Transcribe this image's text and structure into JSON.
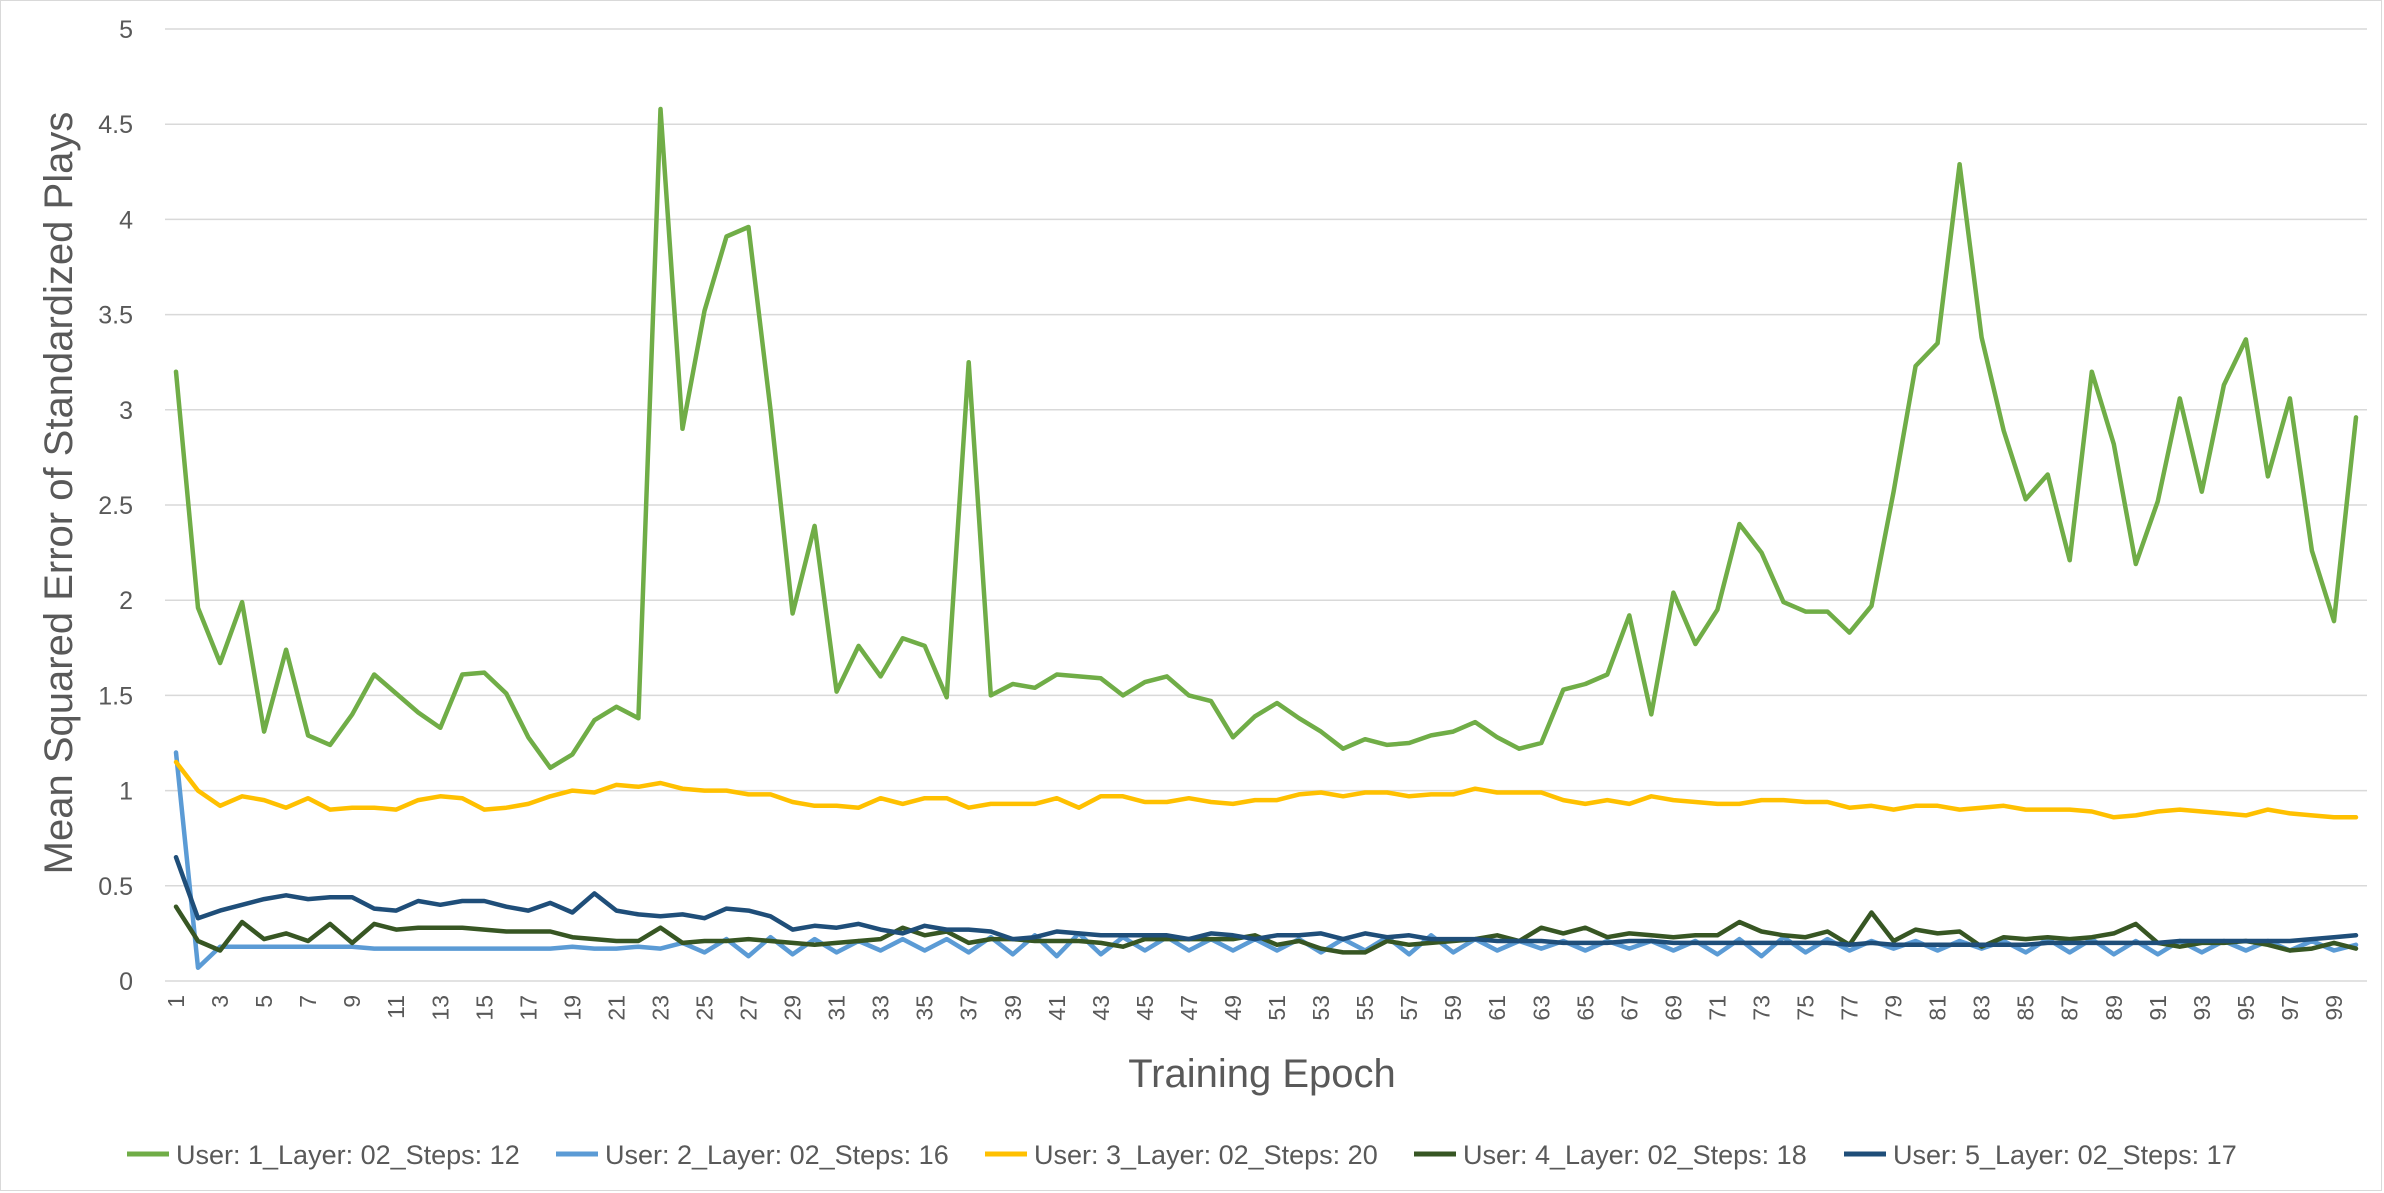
{
  "chart_data": {
    "type": "line",
    "title": "",
    "xlabel": "Training Epoch",
    "ylabel": "Mean Squared Error of Standardized Plays",
    "ylim": [
      0,
      5
    ],
    "yticks": [
      "0",
      "0.5",
      "1",
      "1.5",
      "2",
      "2.5",
      "3",
      "3.5",
      "4",
      "4.5",
      "5"
    ],
    "x": [
      1,
      2,
      3,
      4,
      5,
      6,
      7,
      8,
      9,
      10,
      11,
      12,
      13,
      14,
      15,
      16,
      17,
      18,
      19,
      20,
      21,
      22,
      23,
      24,
      25,
      26,
      27,
      28,
      29,
      30,
      31,
      32,
      33,
      34,
      35,
      36,
      37,
      38,
      39,
      40,
      41,
      42,
      43,
      44,
      45,
      46,
      47,
      48,
      49,
      50,
      51,
      52,
      53,
      54,
      55,
      56,
      57,
      58,
      59,
      60,
      61,
      62,
      63,
      64,
      65,
      66,
      67,
      68,
      69,
      70,
      71,
      72,
      73,
      74,
      75,
      76,
      77,
      78,
      79,
      80,
      81,
      82,
      83,
      84,
      85,
      86,
      87,
      88,
      89,
      90,
      91,
      92,
      93,
      94,
      95,
      96,
      97,
      98,
      99,
      100
    ],
    "xtick_labels": [
      "1",
      "3",
      "5",
      "7",
      "9",
      "11",
      "13",
      "15",
      "17",
      "19",
      "21",
      "23",
      "25",
      "27",
      "29",
      "31",
      "33",
      "35",
      "37",
      "39",
      "41",
      "43",
      "45",
      "47",
      "49",
      "51",
      "53",
      "55",
      "57",
      "59",
      "61",
      "63",
      "65",
      "67",
      "69",
      "71",
      "73",
      "75",
      "77",
      "79",
      "81",
      "83",
      "85",
      "87",
      "89",
      "91",
      "93",
      "95",
      "97",
      "99"
    ],
    "grid": true,
    "legend_position": "bottom",
    "series": [
      {
        "name": "User: 1_Layer: 02_Steps: 12",
        "color": "#70ad47",
        "values": [
          3.2,
          1.96,
          1.67,
          1.99,
          1.31,
          1.74,
          1.29,
          1.24,
          1.4,
          1.61,
          1.51,
          1.41,
          1.33,
          1.61,
          1.62,
          1.51,
          1.28,
          1.12,
          1.19,
          1.37,
          1.44,
          1.38,
          4.58,
          2.9,
          3.52,
          3.91,
          3.96,
          3.0,
          1.93,
          2.39,
          1.52,
          1.76,
          1.6,
          1.8,
          1.76,
          1.49,
          3.25,
          1.5,
          1.56,
          1.54,
          1.61,
          1.6,
          1.59,
          1.5,
          1.57,
          1.6,
          1.5,
          1.47,
          1.28,
          1.39,
          1.46,
          1.38,
          1.31,
          1.22,
          1.27,
          1.24,
          1.25,
          1.29,
          1.31,
          1.36,
          1.28,
          1.22,
          1.25,
          1.53,
          1.56,
          1.61,
          1.92,
          1.4,
          2.04,
          1.77,
          1.95,
          2.4,
          2.25,
          1.99,
          1.94,
          1.94,
          1.83,
          1.97,
          2.57,
          3.23,
          3.35,
          4.29,
          3.38,
          2.89,
          2.53,
          2.66,
          2.21,
          3.2,
          2.82,
          2.19,
          2.52,
          3.06,
          2.57,
          3.13,
          3.37,
          2.65,
          3.06,
          2.26,
          1.89,
          2.96
        ]
      },
      {
        "name": "User: 2_Layer: 02_Steps: 16",
        "color": "#5b9bd5",
        "values": [
          1.2,
          0.07,
          0.18,
          0.18,
          0.18,
          0.18,
          0.18,
          0.18,
          0.18,
          0.17,
          0.17,
          0.17,
          0.17,
          0.17,
          0.17,
          0.17,
          0.17,
          0.17,
          0.18,
          0.17,
          0.17,
          0.18,
          0.17,
          0.2,
          0.15,
          0.22,
          0.13,
          0.23,
          0.14,
          0.22,
          0.15,
          0.21,
          0.16,
          0.22,
          0.16,
          0.22,
          0.15,
          0.23,
          0.14,
          0.24,
          0.13,
          0.25,
          0.14,
          0.23,
          0.16,
          0.23,
          0.16,
          0.22,
          0.16,
          0.22,
          0.16,
          0.22,
          0.15,
          0.22,
          0.16,
          0.23,
          0.14,
          0.24,
          0.15,
          0.22,
          0.16,
          0.21,
          0.17,
          0.21,
          0.16,
          0.21,
          0.17,
          0.21,
          0.16,
          0.21,
          0.14,
          0.22,
          0.13,
          0.23,
          0.15,
          0.22,
          0.16,
          0.21,
          0.17,
          0.21,
          0.16,
          0.21,
          0.17,
          0.21,
          0.15,
          0.22,
          0.15,
          0.22,
          0.14,
          0.21,
          0.14,
          0.21,
          0.15,
          0.21,
          0.16,
          0.21,
          0.16,
          0.21,
          0.16,
          0.19
        ]
      },
      {
        "name": "User: 3_Layer: 02_Steps: 20",
        "color": "#ffc000",
        "values": [
          1.15,
          1.0,
          0.92,
          0.97,
          0.95,
          0.91,
          0.96,
          0.9,
          0.91,
          0.91,
          0.9,
          0.95,
          0.97,
          0.96,
          0.9,
          0.91,
          0.93,
          0.97,
          1.0,
          0.99,
          1.03,
          1.02,
          1.04,
          1.01,
          1.0,
          1.0,
          0.98,
          0.98,
          0.94,
          0.92,
          0.92,
          0.91,
          0.96,
          0.93,
          0.96,
          0.96,
          0.91,
          0.93,
          0.93,
          0.93,
          0.96,
          0.91,
          0.97,
          0.97,
          0.94,
          0.94,
          0.96,
          0.94,
          0.93,
          0.95,
          0.95,
          0.98,
          0.99,
          0.97,
          0.99,
          0.99,
          0.97,
          0.98,
          0.98,
          1.01,
          0.99,
          0.99,
          0.99,
          0.95,
          0.93,
          0.95,
          0.93,
          0.97,
          0.95,
          0.94,
          0.93,
          0.93,
          0.95,
          0.95,
          0.94,
          0.94,
          0.91,
          0.92,
          0.9,
          0.92,
          0.92,
          0.9,
          0.91,
          0.92,
          0.9,
          0.9,
          0.9,
          0.89,
          0.86,
          0.87,
          0.89,
          0.9,
          0.89,
          0.88,
          0.87,
          0.9,
          0.88,
          0.87,
          0.86,
          0.86
        ]
      },
      {
        "name": "User: 4_Layer: 02_Steps: 18",
        "color": "#375623",
        "values": [
          0.39,
          0.21,
          0.16,
          0.31,
          0.22,
          0.25,
          0.21,
          0.3,
          0.2,
          0.3,
          0.27,
          0.28,
          0.28,
          0.28,
          0.27,
          0.26,
          0.26,
          0.26,
          0.23,
          0.22,
          0.21,
          0.21,
          0.28,
          0.2,
          0.21,
          0.21,
          0.22,
          0.21,
          0.2,
          0.19,
          0.2,
          0.21,
          0.22,
          0.28,
          0.24,
          0.26,
          0.2,
          0.22,
          0.22,
          0.21,
          0.21,
          0.21,
          0.2,
          0.18,
          0.22,
          0.22,
          0.22,
          0.22,
          0.22,
          0.24,
          0.19,
          0.21,
          0.17,
          0.15,
          0.15,
          0.21,
          0.19,
          0.2,
          0.21,
          0.22,
          0.24,
          0.21,
          0.28,
          0.25,
          0.28,
          0.23,
          0.25,
          0.24,
          0.23,
          0.24,
          0.24,
          0.31,
          0.26,
          0.24,
          0.23,
          0.26,
          0.19,
          0.36,
          0.21,
          0.27,
          0.25,
          0.26,
          0.18,
          0.23,
          0.22,
          0.23,
          0.22,
          0.23,
          0.25,
          0.3,
          0.2,
          0.18,
          0.2,
          0.2,
          0.21,
          0.19,
          0.16,
          0.17,
          0.2,
          0.17
        ]
      },
      {
        "name": "User: 5_Layer: 02_Steps: 17",
        "color": "#1f4e79",
        "values": [
          0.65,
          0.33,
          0.37,
          0.4,
          0.43,
          0.45,
          0.43,
          0.44,
          0.44,
          0.38,
          0.37,
          0.42,
          0.4,
          0.42,
          0.42,
          0.39,
          0.37,
          0.41,
          0.36,
          0.46,
          0.37,
          0.35,
          0.34,
          0.35,
          0.33,
          0.38,
          0.37,
          0.34,
          0.27,
          0.29,
          0.28,
          0.3,
          0.27,
          0.25,
          0.29,
          0.27,
          0.27,
          0.26,
          0.22,
          0.23,
          0.26,
          0.25,
          0.24,
          0.24,
          0.24,
          0.24,
          0.22,
          0.25,
          0.24,
          0.22,
          0.24,
          0.24,
          0.25,
          0.22,
          0.25,
          0.23,
          0.24,
          0.22,
          0.22,
          0.22,
          0.21,
          0.21,
          0.21,
          0.2,
          0.2,
          0.2,
          0.21,
          0.21,
          0.2,
          0.2,
          0.2,
          0.2,
          0.2,
          0.2,
          0.2,
          0.2,
          0.19,
          0.2,
          0.19,
          0.19,
          0.19,
          0.19,
          0.19,
          0.19,
          0.19,
          0.2,
          0.2,
          0.2,
          0.2,
          0.2,
          0.2,
          0.21,
          0.21,
          0.21,
          0.21,
          0.21,
          0.21,
          0.22,
          0.23,
          0.24
        ]
      }
    ]
  }
}
